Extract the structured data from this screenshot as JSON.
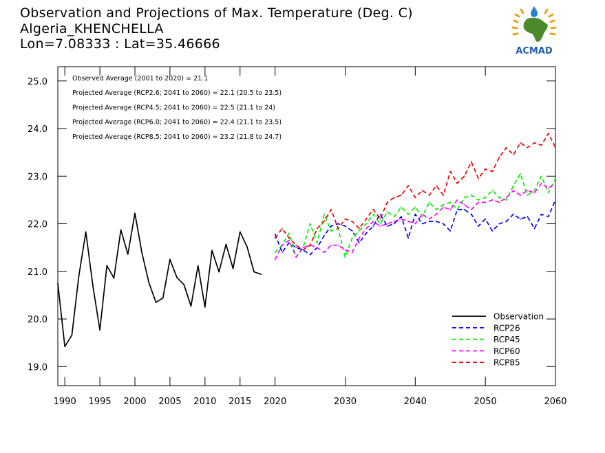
{
  "title_lines": [
    "Observation and Projections of Max. Temperature (Deg. C)",
    "Algeria_KHENCHELLA",
    "Lon=7.08333 : Lat=35.46666"
  ],
  "logo": {
    "text": "ACMAD",
    "colors": {
      "africa": "#4a8a2a",
      "text": "#1f5fae",
      "sun": "#e8a21a",
      "drop": "#2a7fd0"
    }
  },
  "annotations": [
    "Observed Average (2001 to 2020) = 21.1",
    "Projected Average (RCP2.6; 2041 to 2060) = 22.1 (20.5 to 23.5)",
    "Projected Average (RCP4.5; 2041 to 2060) = 22.5 (21.1 to 24)",
    "Projected Average (RCP6.0; 2041 to 2060) = 22.4 (21.1 to 23.5)",
    "Projected Average (RCP8.5; 2041 to 2060) = 23.2 (21.8 to 24.7)"
  ],
  "chart_data": {
    "type": "line",
    "xlim": [
      1989,
      2060
    ],
    "ylim": [
      18.6,
      25.3
    ],
    "x_ticks": [
      1990,
      1995,
      2000,
      2005,
      2010,
      2015,
      2020,
      2030,
      2040,
      2050,
      2060
    ],
    "y_ticks": [
      19.0,
      20.0,
      21.0,
      22.0,
      23.0,
      24.0,
      25.0
    ],
    "y_tick_labels": [
      "19.0",
      "20.0",
      "21.0",
      "22.0",
      "23.0",
      "24.0",
      "25.0"
    ],
    "legend_position": "bottom-right",
    "series": [
      {
        "name": "Observation",
        "color": "#000000",
        "dashed": false,
        "x": [
          1989,
          1990,
          1991,
          1992,
          1993,
          1994,
          1995,
          1996,
          1997,
          1998,
          1999,
          2000,
          2001,
          2002,
          2003,
          2004,
          2005,
          2006,
          2007,
          2008,
          2009,
          2010,
          2011,
          2012,
          2013,
          2014,
          2015,
          2016,
          2017,
          2018,
          2019
        ],
        "y": [
          20.75,
          19.42,
          19.66,
          20.9,
          21.83,
          20.7,
          19.77,
          21.12,
          20.86,
          21.87,
          21.36,
          22.22,
          21.39,
          20.76,
          20.35,
          20.44,
          21.25,
          20.87,
          20.72,
          20.27,
          21.12,
          20.25,
          21.44,
          20.99,
          21.57,
          21.06,
          21.83,
          21.52,
          20.99,
          20.94,
          null
        ]
      },
      {
        "name": "RCP26",
        "color": "#0000ee",
        "dashed": true,
        "x": [
          2020,
          2021,
          2022,
          2023,
          2024,
          2025,
          2026,
          2027,
          2028,
          2029,
          2030,
          2031,
          2032,
          2033,
          2034,
          2035,
          2036,
          2037,
          2038,
          2039,
          2040,
          2041,
          2042,
          2043,
          2044,
          2045,
          2046,
          2047,
          2048,
          2049,
          2050,
          2051,
          2052,
          2053,
          2054,
          2055,
          2056,
          2057,
          2058,
          2059,
          2060
        ],
        "y": [
          21.78,
          21.4,
          21.6,
          21.5,
          21.45,
          21.35,
          21.5,
          21.75,
          21.95,
          22.0,
          21.95,
          21.85,
          21.6,
          21.8,
          21.95,
          22.2,
          21.95,
          22.0,
          22.15,
          21.7,
          22.2,
          22.0,
          22.05,
          22.05,
          22.0,
          21.85,
          22.3,
          22.3,
          22.2,
          21.95,
          22.1,
          21.85,
          22.0,
          22.05,
          22.2,
          22.1,
          22.15,
          21.9,
          22.2,
          22.15,
          22.5
        ]
      },
      {
        "name": "RCP45",
        "color": "#00ee00",
        "dashed": true,
        "x": [
          2020,
          2021,
          2022,
          2023,
          2024,
          2025,
          2026,
          2027,
          2028,
          2029,
          2030,
          2031,
          2032,
          2033,
          2034,
          2035,
          2036,
          2037,
          2038,
          2039,
          2040,
          2041,
          2042,
          2043,
          2044,
          2045,
          2046,
          2047,
          2048,
          2049,
          2050,
          2051,
          2052,
          2053,
          2054,
          2055,
          2056,
          2057,
          2058,
          2059,
          2060
        ],
        "y": [
          21.4,
          21.55,
          21.8,
          21.3,
          21.5,
          22.0,
          21.6,
          22.2,
          21.85,
          21.9,
          21.3,
          21.7,
          21.85,
          22.0,
          22.2,
          22.0,
          22.25,
          22.15,
          22.35,
          22.2,
          22.35,
          22.15,
          22.45,
          22.3,
          22.4,
          22.45,
          22.3,
          22.55,
          22.6,
          22.5,
          22.55,
          22.7,
          22.55,
          22.5,
          22.8,
          23.05,
          22.6,
          22.7,
          23.0,
          22.65,
          22.95
        ]
      },
      {
        "name": "RCP60",
        "color": "#ff00ff",
        "dashed": true,
        "x": [
          2020,
          2021,
          2022,
          2023,
          2024,
          2025,
          2026,
          2027,
          2028,
          2029,
          2030,
          2031,
          2032,
          2033,
          2034,
          2035,
          2036,
          2037,
          2038,
          2039,
          2040,
          2041,
          2042,
          2043,
          2044,
          2045,
          2046,
          2047,
          2048,
          2049,
          2050,
          2051,
          2052,
          2053,
          2054,
          2055,
          2056,
          2057,
          2058,
          2059,
          2060
        ],
        "y": [
          21.25,
          21.55,
          21.65,
          21.3,
          21.5,
          21.55,
          21.5,
          21.4,
          21.55,
          21.55,
          21.45,
          21.4,
          21.7,
          21.9,
          22.05,
          21.95,
          22.0,
          22.05,
          22.1,
          22.05,
          22.0,
          22.2,
          22.1,
          22.2,
          22.35,
          22.3,
          22.5,
          22.4,
          22.3,
          22.45,
          22.45,
          22.5,
          22.45,
          22.55,
          22.7,
          22.6,
          22.7,
          22.65,
          22.85,
          22.75,
          22.85
        ]
      },
      {
        "name": "RCP85",
        "color": "#ee0000",
        "dashed": true,
        "x": [
          2020,
          2021,
          2022,
          2023,
          2024,
          2025,
          2026,
          2027,
          2028,
          2029,
          2030,
          2031,
          2032,
          2033,
          2034,
          2035,
          2036,
          2037,
          2038,
          2039,
          2040,
          2041,
          2042,
          2043,
          2044,
          2045,
          2046,
          2047,
          2048,
          2049,
          2050,
          2051,
          2052,
          2053,
          2054,
          2055,
          2056,
          2057,
          2058,
          2059,
          2060
        ],
        "y": [
          21.7,
          21.9,
          21.7,
          21.55,
          21.45,
          21.55,
          21.9,
          22.05,
          22.3,
          21.9,
          22.1,
          22.05,
          21.9,
          22.1,
          22.3,
          22.1,
          22.45,
          22.55,
          22.6,
          22.8,
          22.55,
          22.7,
          22.6,
          22.8,
          22.6,
          23.1,
          22.85,
          23.0,
          23.3,
          22.95,
          23.15,
          23.1,
          23.4,
          23.6,
          23.45,
          23.7,
          23.6,
          23.7,
          23.65,
          23.9,
          23.6
        ]
      }
    ]
  }
}
